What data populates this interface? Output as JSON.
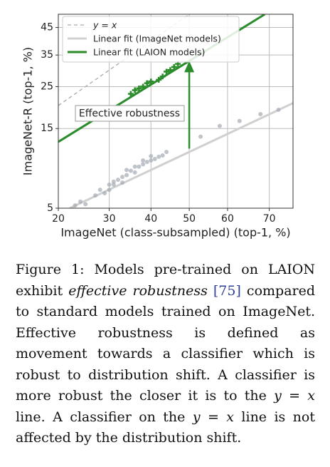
{
  "chart_data": {
    "type": "scatter",
    "xlabel": "ImageNet (class-subsampled) (top-1, %)",
    "ylabel": "ImageNet-R (top-1, %)",
    "xscale": "logit",
    "yscale": "logit",
    "xlim": [
      20,
      75
    ],
    "ylim": [
      5,
      50
    ],
    "xticks": [
      20,
      30,
      40,
      50,
      60,
      70
    ],
    "yticks": [
      5,
      15,
      25,
      35,
      45
    ],
    "grid": true,
    "legend": "upper left",
    "lines": [
      {
        "name": "y = x",
        "color": "#aaaaaa",
        "style": "dashed",
        "x": [
          20,
          50
        ],
        "values": [
          20,
          50
        ]
      },
      {
        "name": "Linear fit (ImageNet models)",
        "color": "#d0d0d0",
        "style": "solid",
        "x": [
          22,
          75
        ],
        "values": [
          5,
          20.6
        ]
      },
      {
        "name": "Linear fit (LAION models)",
        "color": "#2a8c2a",
        "style": "solid",
        "x": [
          20,
          69
        ],
        "values": [
          12.6,
          50
        ]
      }
    ],
    "series": [
      {
        "color": "#a4abb4",
        "marker": "circle",
        "x": [
          23,
          24,
          25,
          27,
          28,
          29,
          30,
          31,
          32,
          33,
          34,
          35,
          36,
          37,
          38,
          39,
          40,
          41,
          42,
          43,
          38,
          40,
          36,
          34,
          31,
          44,
          53,
          58,
          63,
          68,
          72,
          30,
          33
        ],
        "values": [
          5.2,
          5.5,
          5.3,
          6,
          6.5,
          6.2,
          7,
          7.3,
          7.5,
          7.8,
          8,
          8.5,
          8.3,
          9,
          9.3,
          9.6,
          9.8,
          10,
          10.3,
          10.5,
          9.8,
          10.4,
          9,
          8.6,
          7,
          11,
          13.5,
          15.5,
          16.5,
          18,
          19,
          6.5,
          7.2
        ]
      },
      {
        "color": "#2a8c2a",
        "marker": "plus",
        "x": [
          35,
          36,
          37,
          38,
          39,
          40,
          42,
          43,
          44,
          45,
          46,
          47
        ],
        "values": [
          23,
          24,
          24.5,
          25,
          26,
          26.5,
          27,
          28,
          29.5,
          30,
          31,
          32
        ]
      }
    ],
    "annotation": {
      "text": "Effective robustness",
      "color": "#2a8c2a",
      "x": 50,
      "from": 11.5,
      "to": 33
    }
  },
  "caption": {
    "parts": [
      "Figure 1: Models pre-trained on LAION exhibit ",
      "effective robustness",
      " ",
      "[75]",
      " compared to standard models trained on ImageNet. Effective robustness is defined as movement towards a classifier which is robust to distribution shift. A classifier is more robust the closer it is to the ",
      "y = x",
      " line. A classifier on the ",
      "y = x",
      " line is not affected by the distribution shift."
    ]
  }
}
